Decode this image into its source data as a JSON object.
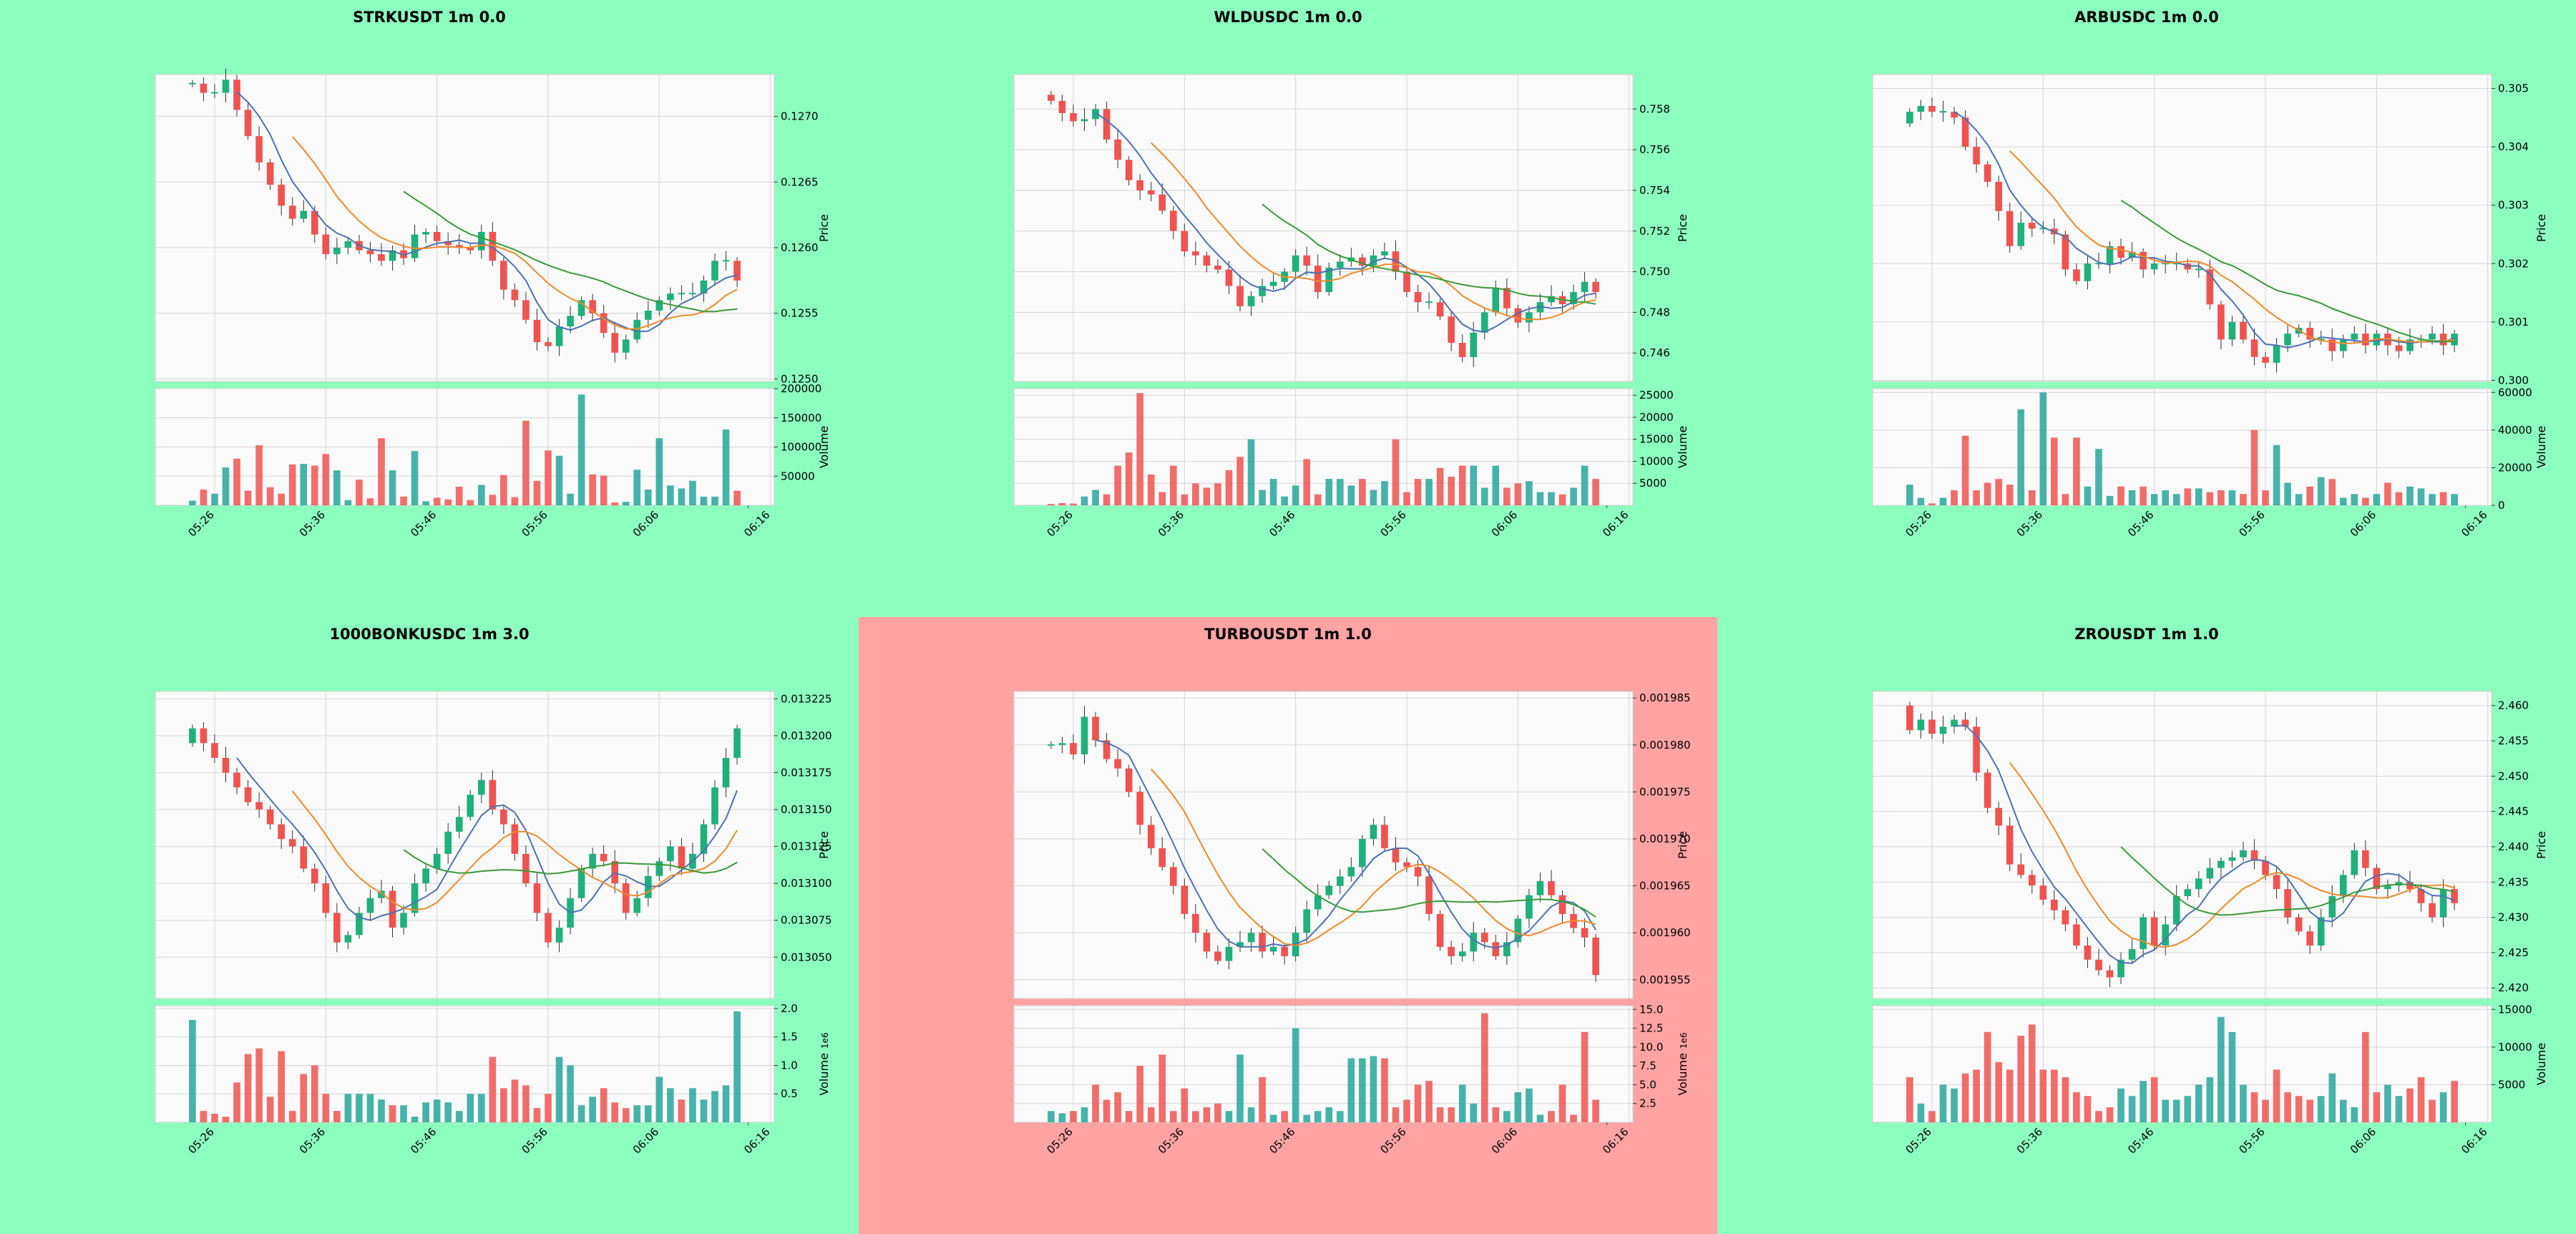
{
  "colors": {
    "page_background": "#8cffbe",
    "highlight_background": "#ffa3a3",
    "axes_background": "#fafafa",
    "grid": "#d6d6d6",
    "up": "#26a69a",
    "up_fill": "#1fb07c",
    "down": "#ef5350",
    "ma_short": "#4c72b0",
    "ma_mid": "#ee8a2b",
    "ma_long": "#3a9a3a"
  },
  "time_ticks": [
    "05:26",
    "05:36",
    "05:46",
    "05:56",
    "06:06",
    "06:16"
  ],
  "chart_data": [
    {
      "type": "candlestick",
      "title": "STRKUSDT 1m 0.0",
      "highlighted": false,
      "price_ylabel": "Price",
      "volume_ylabel": "Volume",
      "volume_multiplier_label": "",
      "price_ticks": [
        "0.1250",
        "0.1255",
        "0.1260",
        "0.1265",
        "0.1270"
      ],
      "price_tick_values": [
        0.125,
        0.1255,
        0.126,
        0.1265,
        0.127
      ],
      "price_range": [
        0.12498,
        0.12732
      ],
      "volume_ticks": [
        "50000",
        "100000",
        "150000",
        "200000"
      ],
      "volume_tick_values": [
        50000,
        100000,
        150000,
        200000
      ],
      "volume_max": 200000,
      "start": 0.12725,
      "closes": [
        0.12725,
        0.12718,
        0.12718,
        0.12728,
        0.12705,
        0.12685,
        0.12665,
        0.12648,
        0.12632,
        0.12622,
        0.12628,
        0.1261,
        0.12595,
        0.126,
        0.12605,
        0.12598,
        0.12595,
        0.1259,
        0.12598,
        0.12592,
        0.1261,
        0.12612,
        0.12605,
        0.12602,
        0.126,
        0.12598,
        0.12612,
        0.1259,
        0.12568,
        0.1256,
        0.12545,
        0.12528,
        0.12525,
        0.1254,
        0.12548,
        0.1256,
        0.1255,
        0.12535,
        0.1252,
        0.1253,
        0.12545,
        0.12552,
        0.1256,
        0.12565,
        0.12565,
        0.12565,
        0.12575,
        0.1259,
        0.1259,
        0.12575
      ],
      "volumes": [
        8000,
        27000,
        20000,
        65000,
        80000,
        25000,
        103000,
        31000,
        20000,
        70000,
        71000,
        68000,
        88000,
        60000,
        9000,
        44000,
        12000,
        115000,
        60000,
        15000,
        93000,
        7000,
        13000,
        10000,
        32000,
        9000,
        35000,
        18000,
        52000,
        14000,
        145000,
        42000,
        94000,
        85000,
        20000,
        190000,
        53000,
        51000,
        5000,
        6000,
        61000,
        27000,
        115000,
        34000,
        29000,
        42000,
        15000,
        15000,
        130000,
        25000
      ]
    },
    {
      "type": "candlestick",
      "title": "WLDUSDC 1m 0.0",
      "highlighted": false,
      "price_ylabel": "Price",
      "volume_ylabel": "Volume",
      "volume_multiplier_label": "",
      "price_ticks": [
        "0.746",
        "0.748",
        "0.750",
        "0.752",
        "0.754",
        "0.756",
        "0.758"
      ],
      "price_tick_values": [
        0.746,
        0.748,
        0.75,
        0.752,
        0.754,
        0.756,
        0.758
      ],
      "price_range": [
        0.7446,
        0.7597
      ],
      "volume_ticks": [
        "5000",
        "10000",
        "15000",
        "20000",
        "25000"
      ],
      "volume_tick_values": [
        5000,
        10000,
        15000,
        20000,
        25000
      ],
      "volume_max": 26500,
      "start": 0.7587,
      "closes": [
        0.7584,
        0.7578,
        0.7574,
        0.7575,
        0.758,
        0.7565,
        0.7555,
        0.7545,
        0.754,
        0.7538,
        0.753,
        0.752,
        0.751,
        0.7508,
        0.7503,
        0.7501,
        0.7493,
        0.7483,
        0.7488,
        0.7493,
        0.7495,
        0.75,
        0.7508,
        0.7503,
        0.749,
        0.7502,
        0.7505,
        0.7507,
        0.7503,
        0.7508,
        0.751,
        0.75,
        0.749,
        0.7485,
        0.7485,
        0.7478,
        0.7465,
        0.7458,
        0.747,
        0.748,
        0.7492,
        0.7482,
        0.7475,
        0.748,
        0.7485,
        0.7488,
        0.7484,
        0.749,
        0.7495,
        0.749
      ],
      "volumes": [
        300,
        500,
        400,
        2000,
        3500,
        2500,
        9000,
        12000,
        25500,
        7000,
        3000,
        9000,
        2500,
        5000,
        4000,
        5000,
        8000,
        11000,
        15000,
        3500,
        6000,
        2000,
        4500,
        10500,
        2500,
        6000,
        6000,
        4500,
        6000,
        3500,
        5500,
        15000,
        3000,
        6000,
        6000,
        8500,
        6500,
        9000,
        9000,
        4000,
        9000,
        4000,
        5000,
        5500,
        3000,
        3000,
        2500,
        4000,
        9000,
        6000
      ]
    },
    {
      "type": "candlestick",
      "title": "ARBUSDC 1m 0.0",
      "highlighted": false,
      "price_ylabel": "Price",
      "volume_ylabel": "Volume",
      "volume_multiplier_label": "",
      "price_ticks": [
        "0.300",
        "0.301",
        "0.302",
        "0.303",
        "0.304",
        "0.305"
      ],
      "price_tick_values": [
        0.3,
        0.301,
        0.302,
        0.303,
        0.304,
        0.305
      ],
      "price_range": [
        0.29998,
        0.30524
      ],
      "volume_ticks": [
        "0",
        "20000",
        "40000",
        "60000"
      ],
      "volume_tick_values": [
        0,
        20000,
        40000,
        60000
      ],
      "volume_max": 62000,
      "start": 0.3044,
      "closes": [
        0.3046,
        0.3047,
        0.3046,
        0.3046,
        0.3045,
        0.304,
        0.3037,
        0.3034,
        0.3029,
        0.3023,
        0.3027,
        0.3026,
        0.3026,
        0.3025,
        0.3019,
        0.3017,
        0.302,
        0.302,
        0.3023,
        0.3021,
        0.3022,
        0.3019,
        0.302,
        0.302,
        0.302,
        0.3019,
        0.3019,
        0.3013,
        0.3007,
        0.301,
        0.3007,
        0.3004,
        0.3003,
        0.3006,
        0.3008,
        0.3009,
        0.3007,
        0.3007,
        0.3005,
        0.3007,
        0.3008,
        0.3006,
        0.3008,
        0.3006,
        0.3005,
        0.3007,
        0.3007,
        0.3008,
        0.3006,
        0.3008
      ],
      "volumes": [
        11000,
        4000,
        1000,
        4000,
        8000,
        37000,
        8000,
        12000,
        14000,
        11000,
        51000,
        8000,
        60000,
        36000,
        6000,
        36000,
        10000,
        30000,
        5000,
        10000,
        8000,
        10000,
        6000,
        8000,
        6000,
        9000,
        9000,
        7000,
        8000,
        8000,
        6000,
        40000,
        8000,
        32000,
        12000,
        6000,
        10000,
        15000,
        14000,
        4000,
        6000,
        4000,
        6000,
        12000,
        7000,
        10000,
        9000,
        6000,
        7000,
        6000
      ]
    },
    {
      "type": "candlestick",
      "title": "1000BONKUSDC 1m 3.0",
      "highlighted": false,
      "price_ylabel": "Price",
      "volume_ylabel": "Volume",
      "volume_multiplier_label": "1e6",
      "price_ticks": [
        "0.013050",
        "0.013075",
        "0.013100",
        "0.013125",
        "0.013150",
        "0.013175",
        "0.013200",
        "0.013225"
      ],
      "price_tick_values": [
        0.01305,
        0.013075,
        0.0131,
        0.013125,
        0.01315,
        0.013175,
        0.0132,
        0.013225
      ],
      "price_range": [
        0.013022,
        0.01323
      ],
      "volume_ticks": [
        "0.5",
        "1.0",
        "1.5",
        "2.0"
      ],
      "volume_tick_values": [
        500000,
        1000000,
        1500000,
        2000000
      ],
      "volume_max": 2050000,
      "start": 0.013195,
      "closes": [
        0.013205,
        0.013195,
        0.013185,
        0.013175,
        0.013165,
        0.013155,
        0.01315,
        0.01314,
        0.01313,
        0.013125,
        0.01311,
        0.0131,
        0.01308,
        0.01306,
        0.013065,
        0.01308,
        0.01309,
        0.013095,
        0.01307,
        0.01308,
        0.0131,
        0.01311,
        0.01312,
        0.013135,
        0.013145,
        0.01316,
        0.01317,
        0.01315,
        0.01314,
        0.01312,
        0.0131,
        0.01308,
        0.01306,
        0.01307,
        0.01309,
        0.01311,
        0.01312,
        0.013115,
        0.0131,
        0.01308,
        0.01309,
        0.013105,
        0.013115,
        0.013125,
        0.01311,
        0.01312,
        0.01314,
        0.013165,
        0.013185,
        0.013205
      ],
      "volumes": [
        1800000,
        200000,
        150000,
        100000,
        700000,
        1200000,
        1300000,
        450000,
        1250000,
        200000,
        850000,
        1000000,
        500000,
        200000,
        500000,
        500000,
        500000,
        400000,
        300000,
        300000,
        100000,
        350000,
        400000,
        350000,
        200000,
        500000,
        500000,
        1150000,
        600000,
        750000,
        650000,
        250000,
        500000,
        1150000,
        1000000,
        300000,
        450000,
        600000,
        350000,
        250000,
        300000,
        300000,
        800000,
        600000,
        400000,
        600000,
        400000,
        550000,
        650000,
        1950000
      ]
    },
    {
      "type": "candlestick",
      "title": "TURBOUSDT 1m 1.0",
      "highlighted": true,
      "price_ylabel": "Price",
      "volume_ylabel": "Volume",
      "volume_multiplier_label": "1e6",
      "price_ticks": [
        "0.001955",
        "0.001960",
        "0.001965",
        "0.001970",
        "0.001975",
        "0.001980",
        "0.001985"
      ],
      "price_tick_values": [
        0.001955,
        0.00196,
        0.001965,
        0.00197,
        0.001975,
        0.00198,
        0.001985
      ],
      "price_range": [
        0.001953,
        0.0019857
      ],
      "volume_ticks": [
        "2.5",
        "5.0",
        "7.5",
        "10.0",
        "12.5",
        "15.0"
      ],
      "volume_tick_values": [
        2500000,
        5000000,
        7500000,
        10000000,
        12500000,
        15000000
      ],
      "volume_max": 15500000,
      "start": 0.00198,
      "closes": [
        0.00198,
        0.0019802,
        0.001979,
        0.001983,
        0.0019805,
        0.0019785,
        0.0019775,
        0.001975,
        0.0019715,
        0.001969,
        0.001967,
        0.001965,
        0.001962,
        0.00196,
        0.001958,
        0.001957,
        0.0019585,
        0.001959,
        0.00196,
        0.001958,
        0.0019585,
        0.0019575,
        0.00196,
        0.0019625,
        0.001964,
        0.001965,
        0.001966,
        0.001967,
        0.00197,
        0.0019715,
        0.001969,
        0.0019675,
        0.001967,
        0.001966,
        0.001962,
        0.0019585,
        0.0019575,
        0.001958,
        0.00196,
        0.001959,
        0.0019575,
        0.001959,
        0.0019615,
        0.001964,
        0.0019655,
        0.001964,
        0.001962,
        0.0019605,
        0.0019595,
        0.0019555
      ],
      "volumes": [
        1500000,
        1200000,
        1500000,
        2000000,
        5000000,
        3000000,
        4000000,
        1500000,
        7500000,
        2000000,
        9000000,
        1500000,
        4500000,
        1500000,
        2000000,
        2500000,
        1500000,
        9000000,
        2000000,
        6000000,
        1000000,
        1500000,
        12500000,
        1000000,
        1500000,
        2000000,
        1500000,
        8500000,
        8500000,
        8800000,
        8500000,
        2000000,
        3000000,
        5000000,
        5500000,
        2000000,
        2000000,
        5000000,
        2500000,
        14500000,
        2000000,
        1500000,
        4000000,
        4500000,
        1000000,
        1500000,
        5000000,
        1000000,
        12000000,
        3000000
      ]
    },
    {
      "type": "candlestick",
      "title": "ZROUSDT 1m 1.0",
      "highlighted": false,
      "price_ylabel": "Price",
      "volume_ylabel": "Volume",
      "volume_multiplier_label": "",
      "price_ticks": [
        "2.420",
        "2.425",
        "2.430",
        "2.435",
        "2.440",
        "2.445",
        "2.450",
        "2.455",
        "2.460"
      ],
      "price_tick_values": [
        2.42,
        2.425,
        2.43,
        2.435,
        2.44,
        2.445,
        2.45,
        2.455,
        2.46
      ],
      "price_range": [
        2.4185,
        2.462
      ],
      "volume_ticks": [
        "5000",
        "10000",
        "15000"
      ],
      "volume_tick_values": [
        5000,
        10000,
        15000
      ],
      "volume_max": 15500,
      "start": 2.46,
      "closes": [
        2.4565,
        2.458,
        2.456,
        2.457,
        2.458,
        2.457,
        2.4505,
        2.4455,
        2.443,
        2.4375,
        2.436,
        2.4345,
        2.4325,
        2.431,
        2.429,
        2.426,
        2.424,
        2.4225,
        2.4215,
        2.424,
        2.4255,
        2.43,
        2.426,
        2.429,
        2.433,
        2.434,
        2.4355,
        2.437,
        2.438,
        2.4385,
        2.4395,
        2.438,
        2.436,
        2.434,
        2.43,
        2.428,
        2.426,
        2.43,
        2.433,
        2.436,
        2.4395,
        2.437,
        2.434,
        2.4345,
        2.435,
        2.434,
        2.432,
        2.43,
        2.434,
        2.432
      ],
      "volumes": [
        6000,
        2500,
        1500,
        5000,
        4500,
        6500,
        7000,
        12000,
        8000,
        7000,
        11500,
        13000,
        7000,
        7000,
        6000,
        4000,
        3500,
        1500,
        2000,
        4500,
        3500,
        5500,
        6000,
        3000,
        3000,
        3500,
        5000,
        6000,
        14000,
        12000,
        5000,
        4000,
        3000,
        7000,
        4000,
        3500,
        3000,
        3500,
        6500,
        3000,
        2000,
        12000,
        4000,
        5000,
        3500,
        4500,
        6000,
        3000,
        4000,
        5500
      ]
    }
  ]
}
